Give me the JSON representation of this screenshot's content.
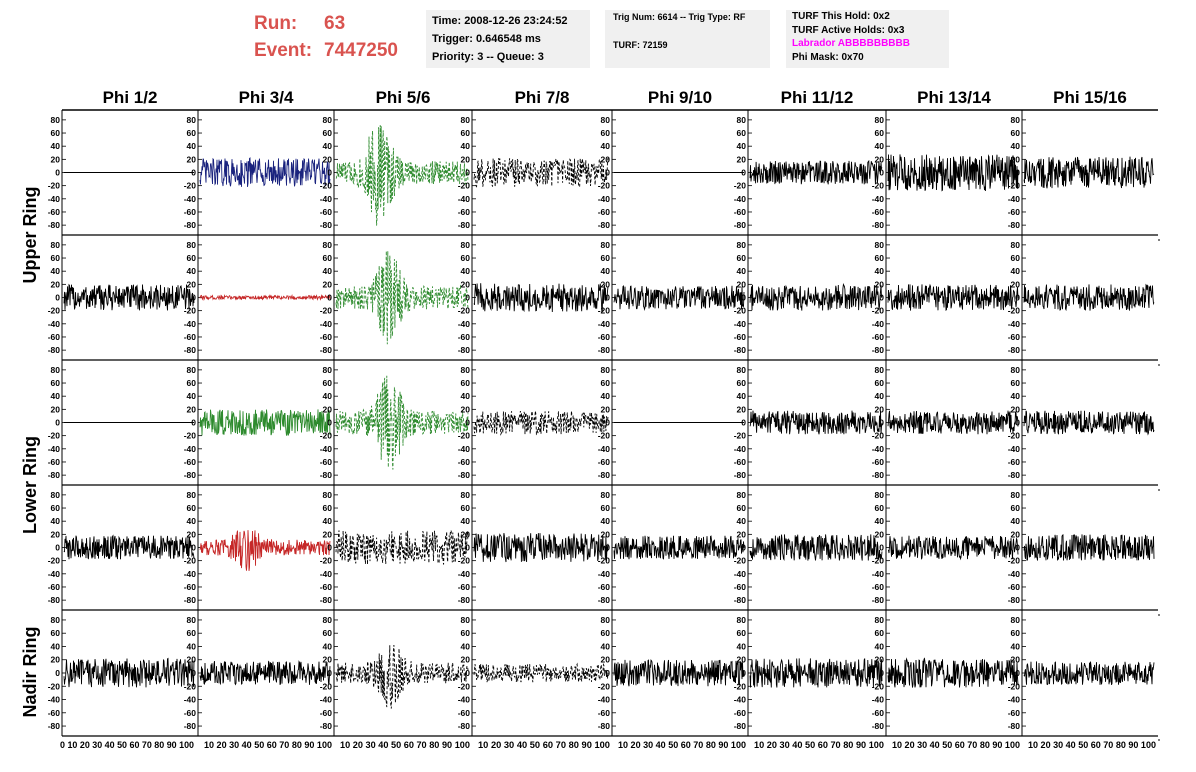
{
  "header": {
    "run_label": "Run:",
    "run_value": "63",
    "event_label": "Event:",
    "event_value": "7447250",
    "time": "Time: 2008-12-26 23:24:52",
    "trigger": "Trigger: 0.646548 ms",
    "priority": "Priority: 3 -- Queue: 3",
    "trig_num": "Trig Num: 6614 -- Trig Type: RF",
    "turf": "TURF: 72159",
    "turf_this_hold": "TURF This Hold: 0x2",
    "turf_active_holds": "TURF Active Holds: 0x3",
    "labrador": "Labrador ABBBBBBBBB",
    "phi_mask": "Phi Mask: 0x70",
    "labrador_color": "#ff00ff",
    "run_color": "#d9534f"
  },
  "chart_data": {
    "type": "line",
    "columns": [
      "Phi 1/2",
      "Phi 3/4",
      "Phi 5/6",
      "Phi 7/8",
      "Phi 9/10",
      "Phi 11/12",
      "Phi 13/14",
      "Phi 15/16"
    ],
    "ring_labels": [
      "Upper Ring",
      "Lower Ring",
      "Nadir Ring"
    ],
    "rows": 5,
    "xlim": [
      0,
      100
    ],
    "ylim": [
      -95,
      95
    ],
    "yticks": [
      80,
      60,
      40,
      20,
      0,
      -20,
      -40,
      -60,
      -80
    ],
    "xtick_text": [
      "0 10 20 30 40 50 60 70 80 90 100",
      "10 20 30 40 50 60 70 80 90 100",
      "10 20 30 40 50 60 70 80 90 100",
      "10 20 30 40 50 60 70 80 90 100",
      "10 20 30 40 50 60 70 80 90 100",
      "10 20 30 40 50 60 70 80 90 100",
      "10 20 30 40 50 60 70 80 90 100",
      "10 20 30 40 50 60 70 80 90 100"
    ],
    "grid": false,
    "colors": {
      "black": "#000000",
      "blue": "#1a237e",
      "green": "#2e8b2e",
      "red": "#c62828"
    },
    "traces": [
      [
        {
          "style": "flat",
          "color": "#000000",
          "amp": 0
        },
        {
          "style": "solid",
          "color": "#1a237e",
          "amp": 22
        },
        {
          "style": "dashed",
          "color": "#2e8b2e",
          "amp": 18,
          "pulse": 70,
          "center": 33
        },
        {
          "style": "dashed",
          "color": "#000000",
          "amp": 22
        },
        {
          "style": "flat",
          "color": "#000000",
          "amp": 0
        },
        {
          "style": "solid",
          "color": "#000000",
          "amp": 18
        },
        {
          "style": "solid",
          "color": "#000000",
          "amp": 28
        },
        {
          "style": "solid",
          "color": "#000000",
          "amp": 24
        }
      ],
      [
        {
          "style": "solid",
          "color": "#000000",
          "amp": 20
        },
        {
          "style": "solid",
          "color": "#c62828",
          "amp": 3
        },
        {
          "style": "dashed",
          "color": "#2e8b2e",
          "amp": 18,
          "pulse": 55,
          "center": 40
        },
        {
          "style": "solid",
          "color": "#000000",
          "amp": 22
        },
        {
          "style": "solid",
          "color": "#000000",
          "amp": 18
        },
        {
          "style": "solid",
          "color": "#000000",
          "amp": 20
        },
        {
          "style": "solid",
          "color": "#000000",
          "amp": 20
        },
        {
          "style": "solid",
          "color": "#000000",
          "amp": 20
        }
      ],
      [
        {
          "style": "flat",
          "color": "#000000",
          "amp": 0
        },
        {
          "style": "solid",
          "color": "#2e8b2e",
          "amp": 20
        },
        {
          "style": "dashed",
          "color": "#2e8b2e",
          "amp": 18,
          "pulse": 60,
          "center": 40
        },
        {
          "style": "dashed",
          "color": "#000000",
          "amp": 18
        },
        {
          "style": "flat",
          "color": "#000000",
          "amp": 0
        },
        {
          "style": "solid",
          "color": "#000000",
          "amp": 18
        },
        {
          "style": "solid",
          "color": "#000000",
          "amp": 18
        },
        {
          "style": "solid",
          "color": "#000000",
          "amp": 18
        }
      ],
      [
        {
          "style": "solid",
          "color": "#000000",
          "amp": 18
        },
        {
          "style": "solid",
          "color": "#c62828",
          "amp": 12,
          "pulse": 25,
          "center": 36
        },
        {
          "style": "dashed",
          "color": "#000000",
          "amp": 26
        },
        {
          "style": "solid",
          "color": "#000000",
          "amp": 22
        },
        {
          "style": "solid",
          "color": "#000000",
          "amp": 18
        },
        {
          "style": "solid",
          "color": "#000000",
          "amp": 20
        },
        {
          "style": "solid",
          "color": "#000000",
          "amp": 18
        },
        {
          "style": "solid",
          "color": "#000000",
          "amp": 20
        }
      ],
      [
        {
          "style": "solid",
          "color": "#000000",
          "amp": 22
        },
        {
          "style": "solid",
          "color": "#000000",
          "amp": 18
        },
        {
          "style": "dashed",
          "color": "#000000",
          "amp": 16,
          "pulse": 40,
          "center": 40
        },
        {
          "style": "dashed",
          "color": "#000000",
          "amp": 14
        },
        {
          "style": "solid",
          "color": "#000000",
          "amp": 20
        },
        {
          "style": "solid",
          "color": "#000000",
          "amp": 22
        },
        {
          "style": "solid",
          "color": "#000000",
          "amp": 22
        },
        {
          "style": "solid",
          "color": "#000000",
          "amp": 18
        }
      ]
    ]
  }
}
